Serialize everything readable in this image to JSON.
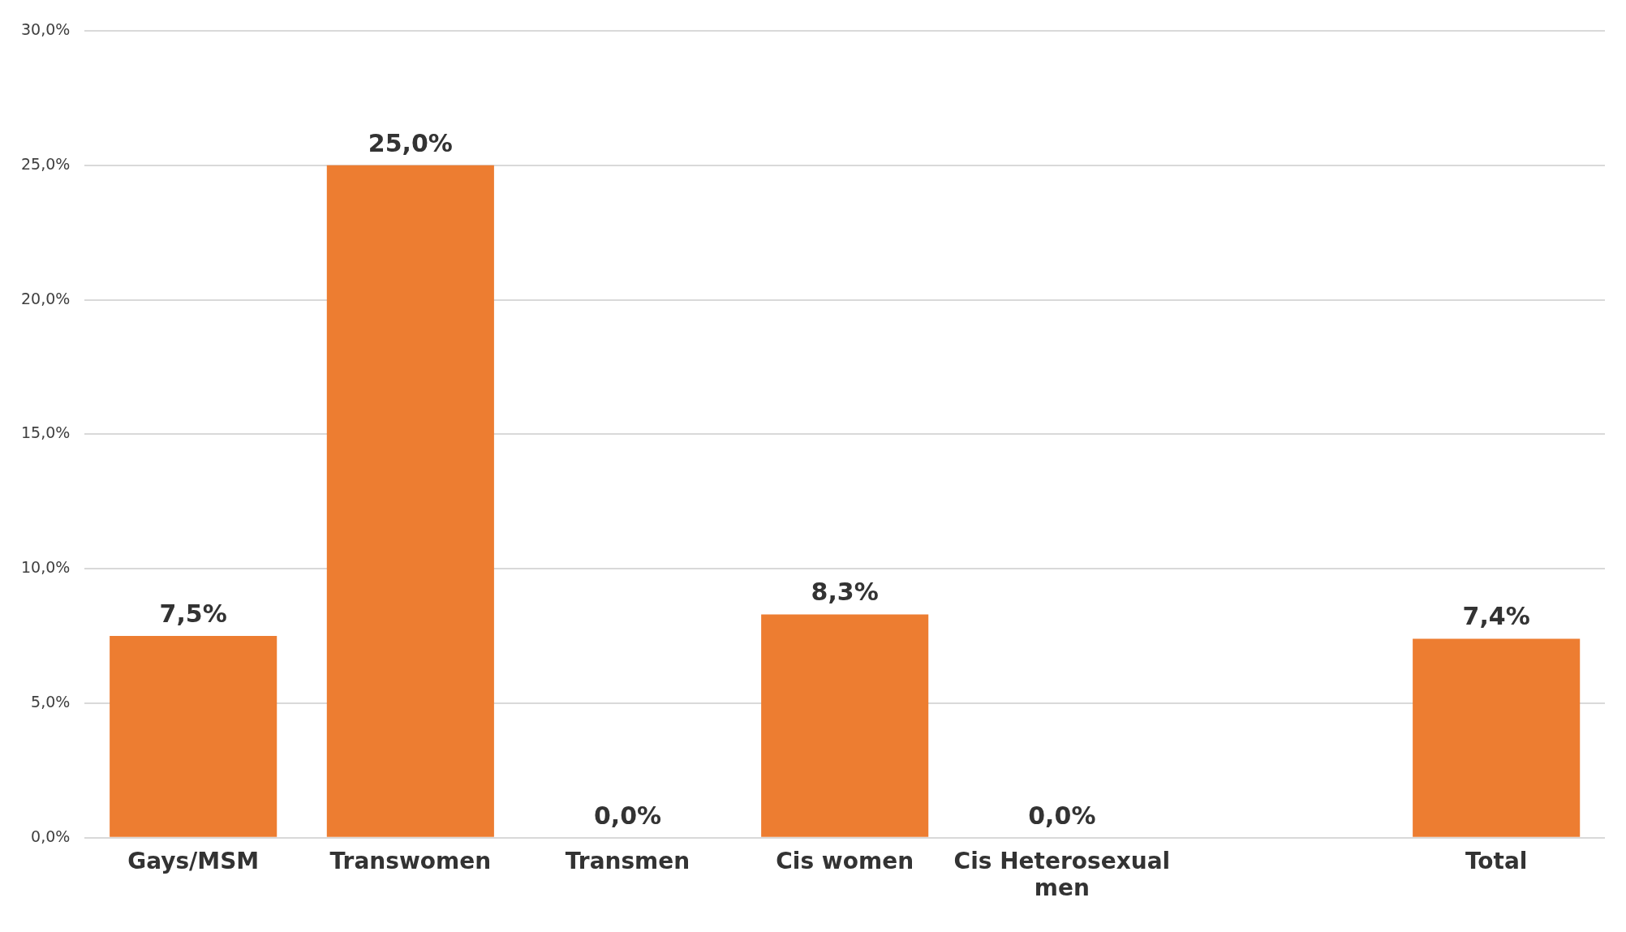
{
  "chart_data": {
    "type": "bar",
    "categories": [
      "Gays/MSM",
      "Transwomen",
      "Transmen",
      "Cis women",
      "Cis Heterosexual men",
      null,
      "Total"
    ],
    "values": [
      7.5,
      25.0,
      0.0,
      8.3,
      0.0,
      null,
      7.4
    ],
    "value_labels": [
      "7,5%",
      "25,0%",
      "0,0%",
      "8,3%",
      "0,0%",
      null,
      "7,4%"
    ],
    "color": "#ed7d31",
    "ylim": [
      0,
      30
    ],
    "yticks": [
      {
        "value": 0,
        "label": "0,0%"
      },
      {
        "value": 5,
        "label": "5,0%"
      },
      {
        "value": 10,
        "label": "10,0%"
      },
      {
        "value": 15,
        "label": "15,0%"
      },
      {
        "value": 20,
        "label": "20,0%"
      },
      {
        "value": 25,
        "label": "25,0%"
      },
      {
        "value": 30,
        "label": "30,0%"
      }
    ],
    "grid": "y"
  }
}
